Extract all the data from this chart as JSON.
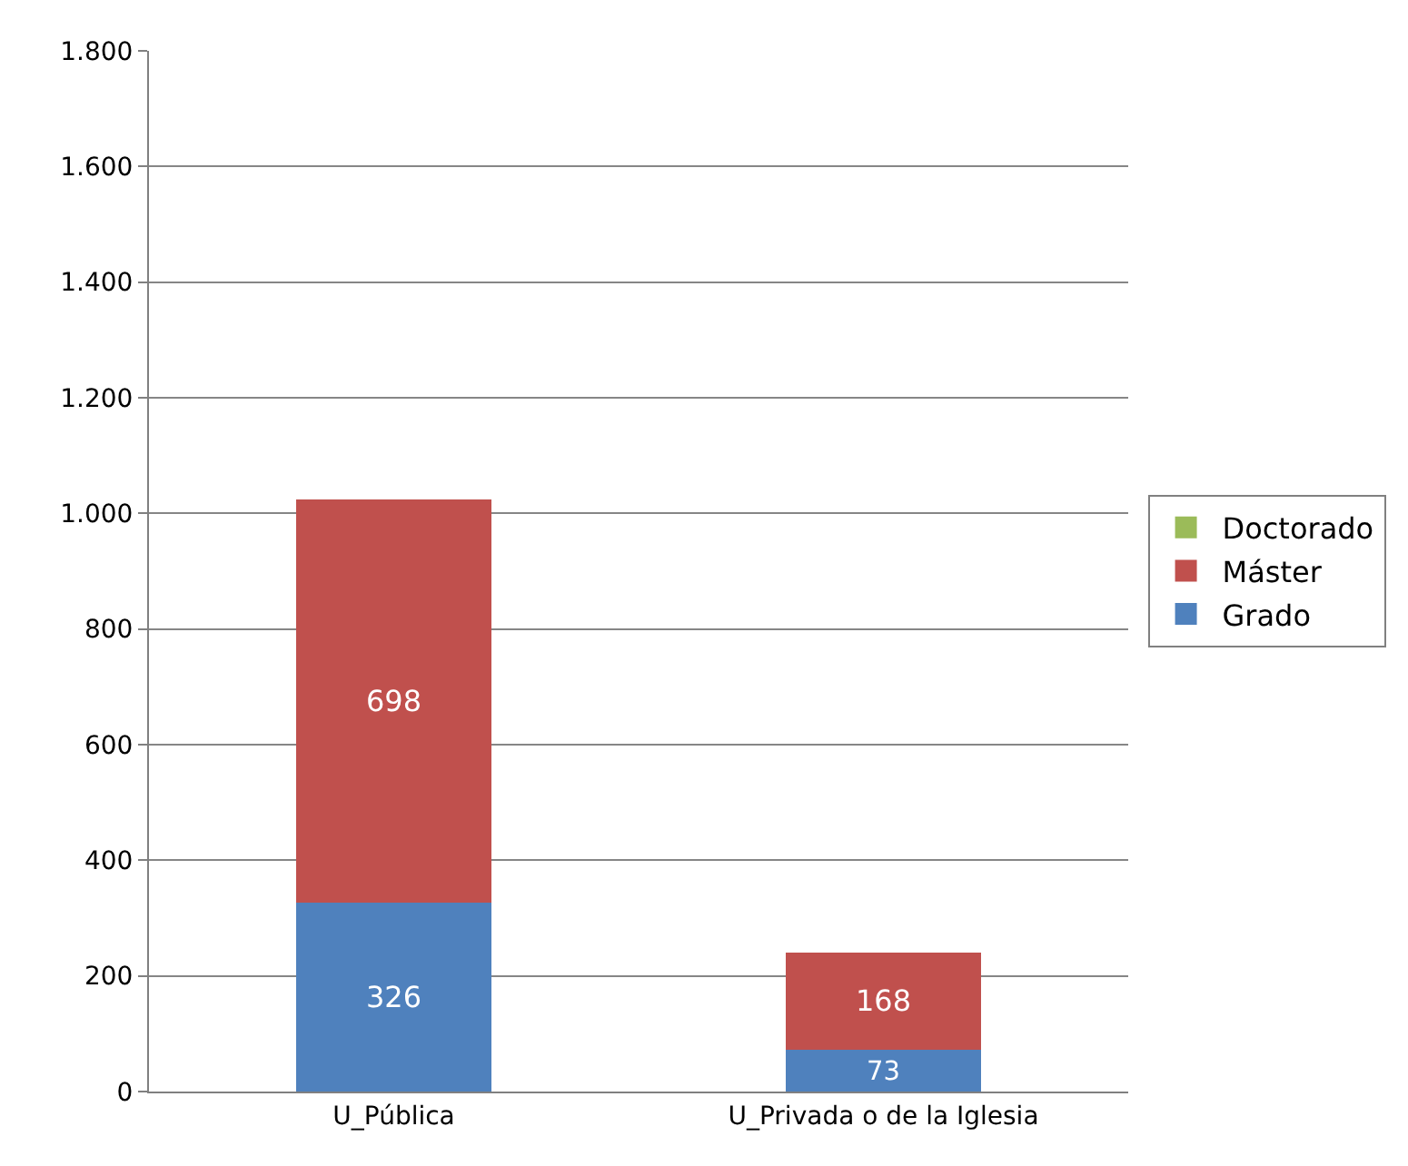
{
  "chart_data": {
    "type": "bar",
    "stacked": true,
    "categories": [
      "U_Pública",
      "U_Privada o de la Iglesia"
    ],
    "series": [
      {
        "name": "Grado",
        "color": "#4f81bd",
        "values": [
          326,
          73
        ]
      },
      {
        "name": "Máster",
        "color": "#c0504d",
        "values": [
          698,
          168
        ]
      },
      {
        "name": "Doctorado",
        "color": "#9bbb59",
        "values": [
          null,
          null
        ]
      }
    ],
    "ylim": [
      0,
      1800
    ],
    "yticks": [
      0,
      200,
      400,
      600,
      800,
      {
        "value": 1000,
        "label": "1.000"
      },
      {
        "value": 1200,
        "label": "1.200"
      },
      {
        "value": 1400,
        "label": "1.400"
      },
      {
        "value": 1600,
        "label": "1.600"
      },
      {
        "value": 1800,
        "label": "1.800"
      }
    ],
    "grid": "y",
    "legend": "right",
    "data_labels": true
  }
}
